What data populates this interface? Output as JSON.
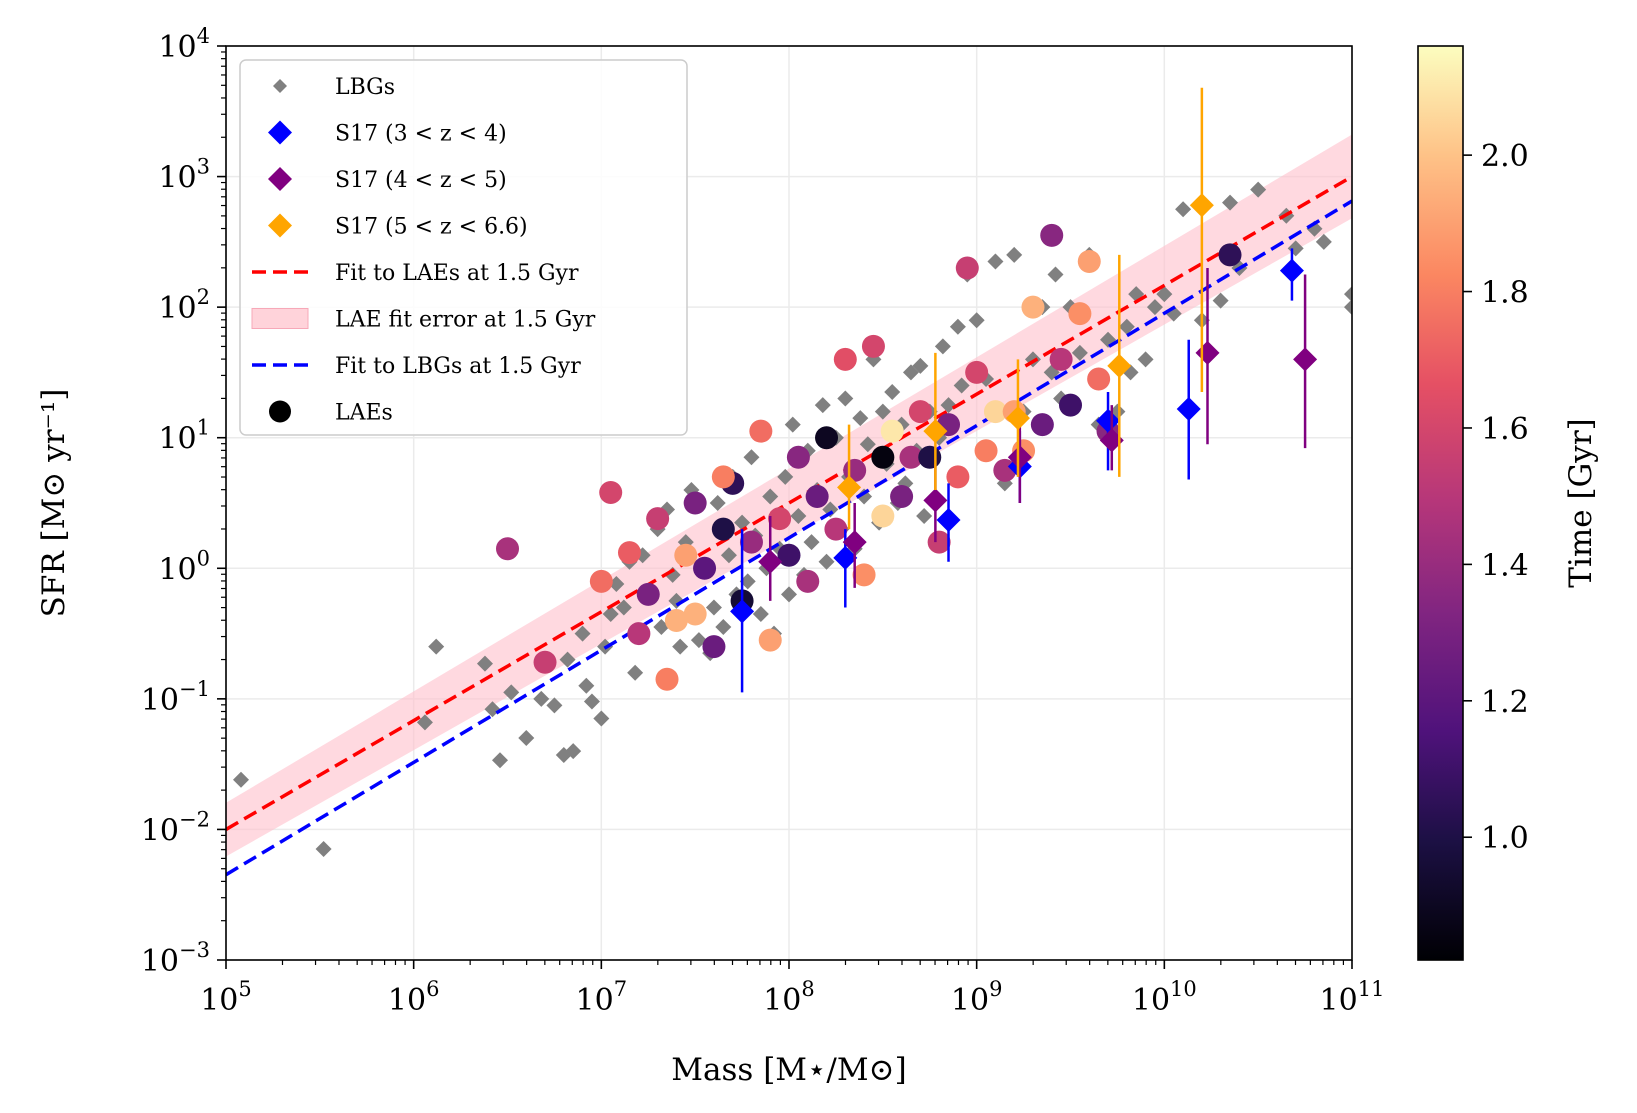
{
  "chart_data": {
    "type": "scatter",
    "x_scale": "log",
    "y_scale": "log",
    "xlim": [
      100000,
      100000000000
    ],
    "ylim": [
      0.001,
      10000
    ],
    "xlabel": "Mass [M⋆/M⊙]",
    "ylabel": "SFR [M⊙ yr⁻¹]",
    "grid": true,
    "legend_position": "top-left",
    "x_ticks": [
      {
        "base": "10",
        "exp": "5"
      },
      {
        "base": "10",
        "exp": "6"
      },
      {
        "base": "10",
        "exp": "7"
      },
      {
        "base": "10",
        "exp": "8"
      },
      {
        "base": "10",
        "exp": "9"
      },
      {
        "base": "10",
        "exp": "10"
      },
      {
        "base": "10",
        "exp": "11"
      }
    ],
    "y_ticks": [
      {
        "base": "10",
        "exp": "−3"
      },
      {
        "base": "10",
        "exp": "−2"
      },
      {
        "base": "10",
        "exp": "−1"
      },
      {
        "base": "10",
        "exp": "0"
      },
      {
        "base": "10",
        "exp": "1"
      },
      {
        "base": "10",
        "exp": "2"
      },
      {
        "base": "10",
        "exp": "3"
      },
      {
        "base": "10",
        "exp": "4"
      }
    ],
    "colorbar": {
      "label": "Time [Gyr]",
      "colormap": "magma",
      "range": [
        0.82,
        2.16
      ],
      "ticks": [
        "1.0",
        "1.2",
        "1.4",
        "1.6",
        "1.8",
        "2.0"
      ]
    },
    "legend": [
      {
        "label": "LBGs",
        "marker": "diamond-small",
        "color": "#808080"
      },
      {
        "label": "S17 (3 < z < 4)",
        "marker": "diamond",
        "color": "#0000ff"
      },
      {
        "label": "S17 (4 < z < 5)",
        "marker": "diamond",
        "color": "#800080"
      },
      {
        "label": "S17 (5 < z < 6.6)",
        "marker": "diamond",
        "color": "#ffa500"
      },
      {
        "label": "Fit to LAEs at 1.5 Gyr",
        "marker": "dashed-line",
        "color": "#ff0000"
      },
      {
        "label": "LAE fit error at 1.5 Gyr",
        "marker": "band",
        "color": "#ffc0cb"
      },
      {
        "label": "Fit to LBGs at 1.5 Gyr",
        "marker": "dashed-line",
        "color": "#0000ff"
      },
      {
        "label": "LAEs",
        "marker": "circle",
        "color": "#000000"
      }
    ],
    "fits": [
      {
        "name": "Fit to LAEs at 1.5 Gyr",
        "x": [
          100000,
          100000000000
        ],
        "y": [
          0.01,
          1000
        ],
        "color": "#ff0000"
      },
      {
        "name": "Fit to LBGs at 1.5 Gyr",
        "x": [
          100000,
          100000000000
        ],
        "y": [
          0.0045,
          650
        ],
        "color": "#0000ff"
      }
    ],
    "fit_error_band": {
      "name": "LAE fit error at 1.5 Gyr",
      "x": [
        100000,
        100000000000
      ],
      "y_low": [
        0.0062,
        480
      ],
      "y_high": [
        0.016,
        2100
      ],
      "color": "#ffc0cb"
    },
    "lbgs": [
      [
        5.08,
        -1.62
      ],
      [
        5.52,
        -2.15
      ],
      [
        6.06,
        -1.18
      ],
      [
        6.12,
        -0.6
      ],
      [
        6.38,
        -0.73
      ],
      [
        6.42,
        -1.08
      ],
      [
        6.46,
        -1.47
      ],
      [
        6.52,
        -0.95
      ],
      [
        6.6,
        -1.3
      ],
      [
        6.68,
        -1.0
      ],
      [
        6.75,
        -1.05
      ],
      [
        6.8,
        -1.43
      ],
      [
        6.82,
        -0.7
      ],
      [
        6.85,
        -1.4
      ],
      [
        6.9,
        -0.5
      ],
      [
        6.92,
        -0.9
      ],
      [
        6.95,
        -1.02
      ],
      [
        7.0,
        -1.15
      ],
      [
        7.02,
        -0.6
      ],
      [
        7.05,
        -0.35
      ],
      [
        7.08,
        -0.12
      ],
      [
        7.12,
        -0.3
      ],
      [
        7.15,
        0.05
      ],
      [
        7.18,
        -0.8
      ],
      [
        7.2,
        -0.5
      ],
      [
        7.22,
        0.1
      ],
      [
        7.25,
        -0.2
      ],
      [
        7.3,
        0.3
      ],
      [
        7.32,
        -0.45
      ],
      [
        7.35,
        0.45
      ],
      [
        7.38,
        -0.05
      ],
      [
        7.4,
        -0.25
      ],
      [
        7.42,
        -0.6
      ],
      [
        7.45,
        0.2
      ],
      [
        7.48,
        0.6
      ],
      [
        7.5,
        -0.35
      ],
      [
        7.52,
        -0.55
      ],
      [
        7.55,
        0.0
      ],
      [
        7.58,
        -0.65
      ],
      [
        7.6,
        -0.3
      ],
      [
        7.62,
        0.5
      ],
      [
        7.65,
        -0.45
      ],
      [
        7.68,
        0.1
      ],
      [
        7.7,
        0.7
      ],
      [
        7.72,
        -0.2
      ],
      [
        7.75,
        0.35
      ],
      [
        7.78,
        -0.1
      ],
      [
        7.8,
        0.85
      ],
      [
        7.82,
        0.25
      ],
      [
        7.85,
        -0.35
      ],
      [
        7.88,
        0.0
      ],
      [
        7.9,
        0.55
      ],
      [
        7.92,
        -0.5
      ],
      [
        7.95,
        0.15
      ],
      [
        7.98,
        0.7
      ],
      [
        8.0,
        -0.2
      ],
      [
        8.02,
        1.1
      ],
      [
        8.05,
        0.4
      ],
      [
        8.08,
        -0.05
      ],
      [
        8.1,
        0.9
      ],
      [
        8.12,
        0.2
      ],
      [
        8.15,
        0.6
      ],
      [
        8.18,
        1.25
      ],
      [
        8.2,
        0.05
      ],
      [
        8.22,
        0.45
      ],
      [
        8.25,
        1.0
      ],
      [
        8.28,
        0.3
      ],
      [
        8.3,
        1.3
      ],
      [
        8.32,
        0.7
      ],
      [
        8.35,
        0.15
      ],
      [
        8.38,
        1.15
      ],
      [
        8.4,
        0.55
      ],
      [
        8.42,
        0.95
      ],
      [
        8.45,
        1.6
      ],
      [
        8.48,
        0.35
      ],
      [
        8.5,
        1.2
      ],
      [
        8.52,
        0.8
      ],
      [
        8.55,
        1.35
      ],
      [
        8.58,
        0.5
      ],
      [
        8.6,
        1.1
      ],
      [
        8.62,
        0.65
      ],
      [
        8.65,
        1.5
      ],
      [
        8.68,
        0.9
      ],
      [
        8.7,
        1.55
      ],
      [
        8.72,
        0.4
      ],
      [
        8.75,
        1.2
      ],
      [
        8.8,
        1.0
      ],
      [
        8.82,
        1.7
      ],
      [
        8.85,
        1.25
      ],
      [
        8.9,
        1.85
      ],
      [
        8.92,
        1.4
      ],
      [
        8.95,
        2.25
      ],
      [
        9.0,
        1.9
      ],
      [
        9.05,
        1.45
      ],
      [
        9.1,
        2.35
      ],
      [
        9.15,
        0.65
      ],
      [
        9.2,
        2.4
      ],
      [
        9.25,
        1.2
      ],
      [
        9.3,
        1.6
      ],
      [
        9.35,
        2.0
      ],
      [
        9.4,
        1.5
      ],
      [
        9.42,
        2.25
      ],
      [
        9.45,
        1.3
      ],
      [
        9.5,
        2.0
      ],
      [
        9.55,
        1.65
      ],
      [
        9.6,
        2.4
      ],
      [
        9.65,
        1.1
      ],
      [
        9.7,
        1.75
      ],
      [
        9.75,
        1.2
      ],
      [
        9.8,
        1.85
      ],
      [
        9.82,
        1.5
      ],
      [
        9.85,
        2.1
      ],
      [
        9.9,
        1.6
      ],
      [
        9.95,
        2.0
      ],
      [
        10.0,
        2.1
      ],
      [
        10.05,
        1.95
      ],
      [
        10.1,
        2.75
      ],
      [
        10.2,
        1.9
      ],
      [
        10.3,
        2.05
      ],
      [
        10.35,
        2.8
      ],
      [
        10.5,
        2.9
      ],
      [
        10.65,
        2.7
      ],
      [
        10.7,
        2.45
      ],
      [
        10.8,
        2.6
      ],
      [
        10.85,
        2.5
      ],
      [
        11.0,
        2.0
      ],
      [
        11.0,
        2.1
      ],
      [
        10.4,
        2.3
      ]
    ],
    "laes": [
      [
        6.5,
        0.15,
        1.45
      ],
      [
        6.7,
        -0.72,
        1.55
      ],
      [
        7.05,
        0.58,
        1.6
      ],
      [
        7.15,
        0.12,
        1.7
      ],
      [
        7.25,
        -0.2,
        1.3
      ],
      [
        7.3,
        0.38,
        1.55
      ],
      [
        7.35,
        -0.85,
        1.8
      ],
      [
        7.4,
        -0.4,
        1.95
      ],
      [
        7.45,
        0.1,
        1.9
      ],
      [
        7.5,
        0.5,
        1.3
      ],
      [
        7.55,
        0.0,
        1.2
      ],
      [
        7.6,
        -0.6,
        1.25
      ],
      [
        7.65,
        0.3,
        1.0
      ],
      [
        7.7,
        0.65,
        1.05
      ],
      [
        7.75,
        -0.25,
        0.95
      ],
      [
        7.8,
        0.2,
        1.4
      ],
      [
        7.85,
        1.05,
        1.75
      ],
      [
        7.9,
        -0.55,
        1.9
      ],
      [
        7.95,
        0.38,
        1.6
      ],
      [
        8.0,
        0.1,
        1.1
      ],
      [
        8.05,
        0.85,
        1.35
      ],
      [
        8.1,
        -0.1,
        1.45
      ],
      [
        8.15,
        0.55,
        1.25
      ],
      [
        8.2,
        1.0,
        0.9
      ],
      [
        8.25,
        0.3,
        1.5
      ],
      [
        8.3,
        1.6,
        1.65
      ],
      [
        8.35,
        0.75,
        1.4
      ],
      [
        8.4,
        -0.05,
        1.85
      ],
      [
        8.45,
        1.7,
        1.6
      ],
      [
        8.5,
        0.4,
        2.05
      ],
      [
        8.55,
        1.05,
        2.1
      ],
      [
        8.6,
        0.55,
        1.3
      ],
      [
        8.65,
        0.85,
        1.45
      ],
      [
        8.7,
        1.2,
        1.6
      ],
      [
        8.75,
        0.85,
        1.0
      ],
      [
        8.8,
        0.2,
        1.55
      ],
      [
        8.85,
        1.1,
        1.3
      ],
      [
        8.9,
        0.7,
        1.7
      ],
      [
        8.95,
        2.3,
        1.55
      ],
      [
        9.0,
        1.5,
        1.6
      ],
      [
        9.05,
        0.9,
        1.8
      ],
      [
        9.1,
        1.2,
        2.05
      ],
      [
        9.15,
        0.75,
        1.45
      ],
      [
        9.2,
        1.2,
        1.9
      ],
      [
        9.25,
        0.9,
        1.85
      ],
      [
        9.3,
        2.0,
        1.95
      ],
      [
        9.35,
        1.1,
        1.25
      ],
      [
        9.4,
        2.55,
        1.35
      ],
      [
        9.45,
        1.6,
        1.5
      ],
      [
        9.5,
        1.25,
        1.1
      ],
      [
        9.55,
        1.95,
        1.85
      ],
      [
        9.6,
        2.35,
        1.9
      ],
      [
        9.65,
        1.45,
        1.75
      ],
      [
        9.7,
        1.05,
        1.35
      ],
      [
        10.35,
        2.4,
        1.05
      ],
      [
        7.0,
        -0.1,
        1.75
      ],
      [
        7.5,
        -0.35,
        1.95
      ],
      [
        7.2,
        -0.5,
        1.5
      ],
      [
        7.65,
        0.7,
        1.8
      ],
      [
        8.5,
        0.85,
        0.85
      ]
    ],
    "s17": [
      {
        "series": "S17 (3 < z < 4)",
        "color": "#0000ff",
        "points": [
          [
            7.75,
            -0.33,
            -0.95,
            0.3
          ],
          [
            8.3,
            0.08,
            -0.3,
            0.3
          ],
          [
            8.85,
            0.37,
            0.05,
            0.65
          ],
          [
            9.23,
            0.78,
            0.5,
            1.05
          ],
          [
            9.7,
            1.13,
            0.75,
            1.35
          ],
          [
            10.13,
            1.22,
            0.68,
            1.75
          ],
          [
            10.68,
            2.28,
            2.05,
            2.45
          ]
        ]
      },
      {
        "series": "S17 (4 < z < 5)",
        "color": "#800080",
        "points": [
          [
            7.9,
            0.05,
            -0.25,
            0.4
          ],
          [
            8.35,
            0.2,
            -0.15,
            0.5
          ],
          [
            8.78,
            0.52,
            0.2,
            0.8
          ],
          [
            9.23,
            0.85,
            0.5,
            1.1
          ],
          [
            9.72,
            0.98,
            0.75,
            1.25
          ],
          [
            10.23,
            1.65,
            0.95,
            2.3
          ],
          [
            10.75,
            1.6,
            0.92,
            2.25
          ]
        ]
      },
      {
        "series": "S17 (5 < z < 6.6)",
        "color": "#ffa500",
        "points": [
          [
            8.32,
            0.62,
            0.3,
            1.1
          ],
          [
            8.78,
            1.05,
            0.6,
            1.65
          ],
          [
            9.22,
            1.15,
            0.7,
            1.6
          ],
          [
            9.76,
            1.55,
            0.7,
            2.4
          ],
          [
            10.2,
            2.78,
            1.35,
            3.68
          ]
        ]
      }
    ]
  }
}
